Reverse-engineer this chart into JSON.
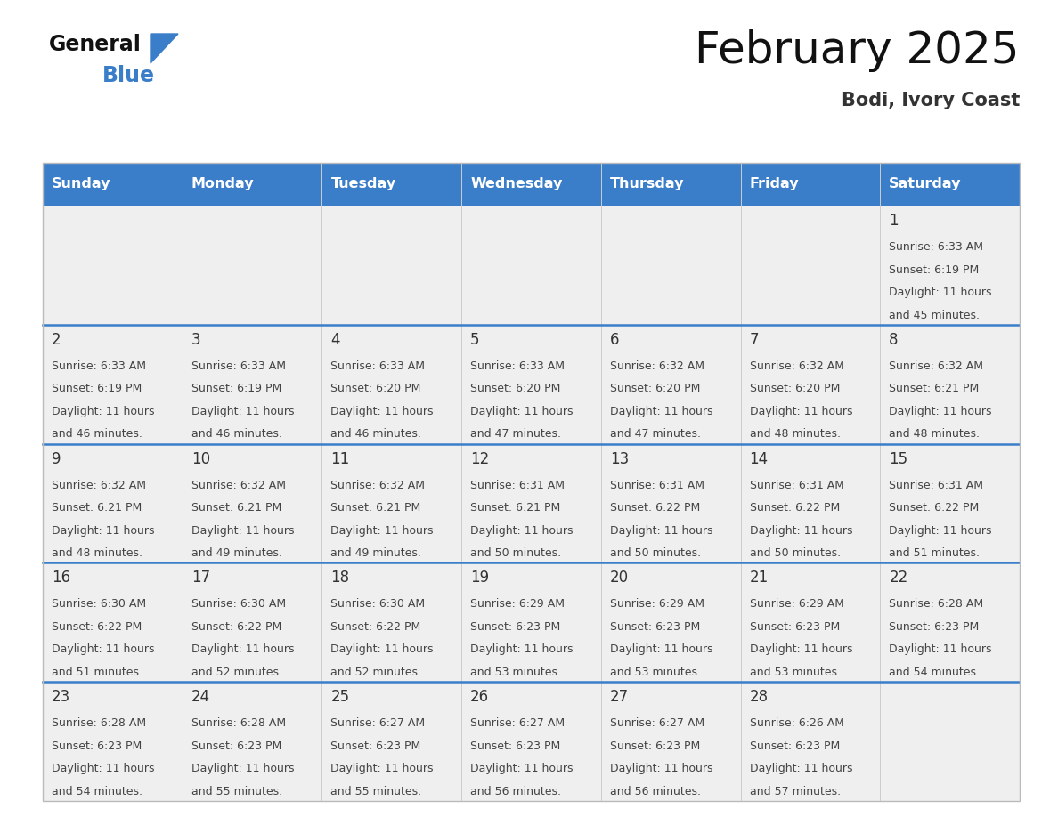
{
  "title": "February 2025",
  "subtitle": "Bodi, Ivory Coast",
  "days_of_week": [
    "Sunday",
    "Monday",
    "Tuesday",
    "Wednesday",
    "Thursday",
    "Friday",
    "Saturday"
  ],
  "header_bg": "#3A7DC9",
  "header_text": "#FFFFFF",
  "cell_bg": "#EFEFEF",
  "divider_color": "#3A7DC9",
  "text_color": "#444444",
  "day_num_color": "#333333",
  "calendar_data": [
    [
      null,
      null,
      null,
      null,
      null,
      null,
      {
        "day": 1,
        "sunrise": "6:33 AM",
        "sunset": "6:19 PM",
        "daylight": "11 hours",
        "daylight2": "and 45 minutes."
      }
    ],
    [
      {
        "day": 2,
        "sunrise": "6:33 AM",
        "sunset": "6:19 PM",
        "daylight": "11 hours",
        "daylight2": "and 46 minutes."
      },
      {
        "day": 3,
        "sunrise": "6:33 AM",
        "sunset": "6:19 PM",
        "daylight": "11 hours",
        "daylight2": "and 46 minutes."
      },
      {
        "day": 4,
        "sunrise": "6:33 AM",
        "sunset": "6:20 PM",
        "daylight": "11 hours",
        "daylight2": "and 46 minutes."
      },
      {
        "day": 5,
        "sunrise": "6:33 AM",
        "sunset": "6:20 PM",
        "daylight": "11 hours",
        "daylight2": "and 47 minutes."
      },
      {
        "day": 6,
        "sunrise": "6:32 AM",
        "sunset": "6:20 PM",
        "daylight": "11 hours",
        "daylight2": "and 47 minutes."
      },
      {
        "day": 7,
        "sunrise": "6:32 AM",
        "sunset": "6:20 PM",
        "daylight": "11 hours",
        "daylight2": "and 48 minutes."
      },
      {
        "day": 8,
        "sunrise": "6:32 AM",
        "sunset": "6:21 PM",
        "daylight": "11 hours",
        "daylight2": "and 48 minutes."
      }
    ],
    [
      {
        "day": 9,
        "sunrise": "6:32 AM",
        "sunset": "6:21 PM",
        "daylight": "11 hours",
        "daylight2": "and 48 minutes."
      },
      {
        "day": 10,
        "sunrise": "6:32 AM",
        "sunset": "6:21 PM",
        "daylight": "11 hours",
        "daylight2": "and 49 minutes."
      },
      {
        "day": 11,
        "sunrise": "6:32 AM",
        "sunset": "6:21 PM",
        "daylight": "11 hours",
        "daylight2": "and 49 minutes."
      },
      {
        "day": 12,
        "sunrise": "6:31 AM",
        "sunset": "6:21 PM",
        "daylight": "11 hours",
        "daylight2": "and 50 minutes."
      },
      {
        "day": 13,
        "sunrise": "6:31 AM",
        "sunset": "6:22 PM",
        "daylight": "11 hours",
        "daylight2": "and 50 minutes."
      },
      {
        "day": 14,
        "sunrise": "6:31 AM",
        "sunset": "6:22 PM",
        "daylight": "11 hours",
        "daylight2": "and 50 minutes."
      },
      {
        "day": 15,
        "sunrise": "6:31 AM",
        "sunset": "6:22 PM",
        "daylight": "11 hours",
        "daylight2": "and 51 minutes."
      }
    ],
    [
      {
        "day": 16,
        "sunrise": "6:30 AM",
        "sunset": "6:22 PM",
        "daylight": "11 hours",
        "daylight2": "and 51 minutes."
      },
      {
        "day": 17,
        "sunrise": "6:30 AM",
        "sunset": "6:22 PM",
        "daylight": "11 hours",
        "daylight2": "and 52 minutes."
      },
      {
        "day": 18,
        "sunrise": "6:30 AM",
        "sunset": "6:22 PM",
        "daylight": "11 hours",
        "daylight2": "and 52 minutes."
      },
      {
        "day": 19,
        "sunrise": "6:29 AM",
        "sunset": "6:23 PM",
        "daylight": "11 hours",
        "daylight2": "and 53 minutes."
      },
      {
        "day": 20,
        "sunrise": "6:29 AM",
        "sunset": "6:23 PM",
        "daylight": "11 hours",
        "daylight2": "and 53 minutes."
      },
      {
        "day": 21,
        "sunrise": "6:29 AM",
        "sunset": "6:23 PM",
        "daylight": "11 hours",
        "daylight2": "and 53 minutes."
      },
      {
        "day": 22,
        "sunrise": "6:28 AM",
        "sunset": "6:23 PM",
        "daylight": "11 hours",
        "daylight2": "and 54 minutes."
      }
    ],
    [
      {
        "day": 23,
        "sunrise": "6:28 AM",
        "sunset": "6:23 PM",
        "daylight": "11 hours",
        "daylight2": "and 54 minutes."
      },
      {
        "day": 24,
        "sunrise": "6:28 AM",
        "sunset": "6:23 PM",
        "daylight": "11 hours",
        "daylight2": "and 55 minutes."
      },
      {
        "day": 25,
        "sunrise": "6:27 AM",
        "sunset": "6:23 PM",
        "daylight": "11 hours",
        "daylight2": "and 55 minutes."
      },
      {
        "day": 26,
        "sunrise": "6:27 AM",
        "sunset": "6:23 PM",
        "daylight": "11 hours",
        "daylight2": "and 56 minutes."
      },
      {
        "day": 27,
        "sunrise": "6:27 AM",
        "sunset": "6:23 PM",
        "daylight": "11 hours",
        "daylight2": "and 56 minutes."
      },
      {
        "day": 28,
        "sunrise": "6:26 AM",
        "sunset": "6:23 PM",
        "daylight": "11 hours",
        "daylight2": "and 57 minutes."
      },
      null
    ]
  ],
  "logo_general_color": "#111111",
  "logo_blue_color": "#3A7DC9"
}
